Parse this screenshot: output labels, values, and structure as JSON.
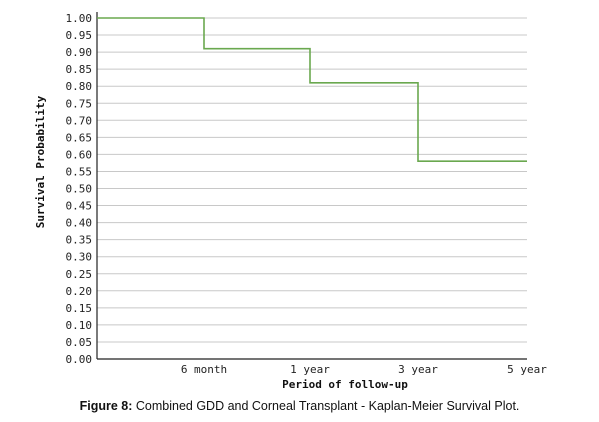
{
  "chart_data": {
    "type": "line",
    "step": true,
    "xlabel": "Period of follow-up",
    "ylabel": "Survival Probability",
    "ylim": [
      0,
      1
    ],
    "y_ticks": [
      "1.00",
      "0.95",
      "0.90",
      "0.85",
      "0.80",
      "0.75",
      "0.70",
      "0.65",
      "0.60",
      "0.55",
      "0.50",
      "0.45",
      "0.40",
      "0.35",
      "0.30",
      "0.25",
      "0.20",
      "0.15",
      "0.10",
      "0.05",
      "0.00"
    ],
    "categories": [
      "6 month",
      "1 year",
      "3 year",
      "5 year"
    ],
    "grid": true,
    "series": [
      {
        "color": "#6aa84f",
        "x": [
          0,
          1,
          2,
          3,
          4
        ],
        "y": [
          1.0,
          0.91,
          0.81,
          0.58,
          0.58
        ]
      }
    ]
  },
  "caption": {
    "label": "Figure 8:",
    "text": " Combined GDD and Corneal Transplant - Kaplan-Meier Survival Plot."
  }
}
